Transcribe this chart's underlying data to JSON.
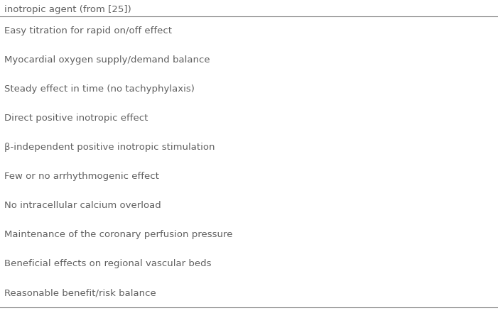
{
  "title_partial": "inotropic agent (from [25])",
  "rows": [
    "Easy titration for rapid on/off effect",
    "Myocardial oxygen supply/demand balance",
    "Steady effect in time (no tachyphylaxis)",
    "Direct positive inotropic effect",
    "β-independent positive inotropic stimulation",
    "Few or no arrhythmogenic effect",
    "No intracellular calcium overload",
    "Maintenance of the coronary perfusion pressure",
    "Beneficial effects on regional vascular beds",
    "Reasonable benefit/risk balance"
  ],
  "bg_color": "#ffffff",
  "text_color": "#606060",
  "title_color": "#606060",
  "font_size": 9.5,
  "title_font_size": 9.5,
  "line_color": "#888888",
  "figwidth": 7.01,
  "figheight": 4.41,
  "dpi": 100
}
